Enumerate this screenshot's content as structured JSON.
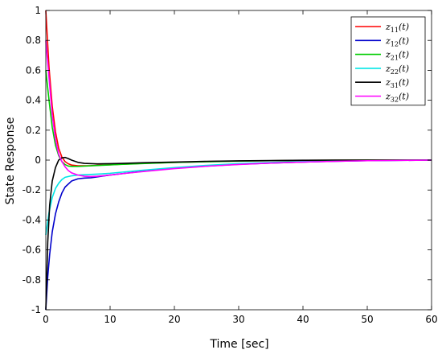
{
  "chart_data": {
    "type": "line",
    "xlabel": "Time [sec]",
    "ylabel": "State Response",
    "xlim": [
      0,
      60
    ],
    "ylim": [
      -1,
      1
    ],
    "xticks": [
      "0",
      "10",
      "20",
      "30",
      "40",
      "50",
      "60"
    ],
    "yticks": [
      "-1",
      "-0.8",
      "-0.6",
      "-0.4",
      "-0.2",
      "0",
      "0.2",
      "0.4",
      "0.6",
      "0.8",
      "1"
    ],
    "grid": false,
    "legend_position": "top-right",
    "series": [
      {
        "name": "z11(t)",
        "label_main": "z",
        "label_sub": "11",
        "label_tail": "(t)",
        "color": "#ff0000",
        "x": [
          0,
          0.5,
          1,
          1.5,
          2,
          2.5,
          3,
          3.5,
          4,
          5,
          6,
          7,
          8,
          10,
          12,
          15,
          20,
          25,
          30,
          35,
          40,
          45,
          50,
          55,
          60
        ],
        "y": [
          1.0,
          0.62,
          0.36,
          0.19,
          0.08,
          0.02,
          -0.01,
          -0.025,
          -0.033,
          -0.038,
          -0.038,
          -0.037,
          -0.035,
          -0.031,
          -0.027,
          -0.022,
          -0.015,
          -0.01,
          -0.006,
          -0.004,
          -0.002,
          -0.001,
          0,
          0,
          0
        ]
      },
      {
        "name": "z12(t)",
        "label_main": "z",
        "label_sub": "12",
        "label_tail": "(t)",
        "color": "#0000cc",
        "x": [
          0,
          0.3,
          0.6,
          1,
          1.5,
          2,
          2.5,
          3,
          4,
          5,
          6,
          7,
          8,
          10,
          12,
          15,
          20,
          25,
          30,
          35,
          40,
          45,
          50,
          55,
          60
        ],
        "y": [
          -1.0,
          -0.78,
          -0.63,
          -0.48,
          -0.36,
          -0.28,
          -0.22,
          -0.18,
          -0.14,
          -0.125,
          -0.12,
          -0.118,
          -0.112,
          -0.1,
          -0.09,
          -0.075,
          -0.055,
          -0.04,
          -0.028,
          -0.02,
          -0.013,
          -0.008,
          -0.004,
          -0.002,
          0
        ]
      },
      {
        "name": "z21(t)",
        "label_main": "z",
        "label_sub": "21",
        "label_tail": "(t)",
        "color": "#00cc00",
        "x": [
          0,
          0.5,
          1,
          1.5,
          2,
          2.5,
          3,
          3.5,
          4,
          5,
          6,
          7,
          8,
          10,
          12,
          15,
          20,
          25,
          30,
          35,
          40,
          45,
          50,
          55,
          60
        ],
        "y": [
          0.6,
          0.4,
          0.22,
          0.1,
          0.03,
          -0.01,
          -0.03,
          -0.04,
          -0.042,
          -0.042,
          -0.04,
          -0.038,
          -0.036,
          -0.032,
          -0.028,
          -0.023,
          -0.016,
          -0.011,
          -0.007,
          -0.004,
          -0.002,
          -0.001,
          0,
          0,
          0
        ]
      },
      {
        "name": "z22(t)",
        "label_main": "z",
        "label_sub": "22",
        "label_tail": "(t)",
        "color": "#00e5e5",
        "x": [
          0,
          0.5,
          1,
          1.5,
          2,
          2.5,
          3,
          4,
          5,
          6,
          7,
          8,
          10,
          12,
          15,
          20,
          25,
          30,
          35,
          40,
          45,
          50,
          55,
          60
        ],
        "y": [
          -0.5,
          -0.35,
          -0.25,
          -0.19,
          -0.155,
          -0.13,
          -0.115,
          -0.105,
          -0.1,
          -0.098,
          -0.096,
          -0.094,
          -0.088,
          -0.08,
          -0.068,
          -0.05,
          -0.035,
          -0.024,
          -0.016,
          -0.01,
          -0.006,
          -0.003,
          -0.001,
          0
        ]
      },
      {
        "name": "z31(t)",
        "label_main": "z",
        "label_sub": "31",
        "label_tail": "(t)",
        "color": "#000000",
        "x": [
          0,
          0.3,
          0.6,
          1,
          1.5,
          2,
          2.5,
          3,
          3.5,
          4,
          5,
          6,
          8,
          10,
          12,
          15,
          20,
          25,
          30,
          35,
          40,
          45,
          50,
          55,
          60
        ],
        "y": [
          -1.0,
          -0.55,
          -0.3,
          -0.14,
          -0.05,
          0.0,
          0.015,
          0.018,
          0.01,
          0.0,
          -0.015,
          -0.022,
          -0.025,
          -0.024,
          -0.022,
          -0.018,
          -0.013,
          -0.008,
          -0.005,
          -0.003,
          -0.001,
          0,
          0,
          0,
          0
        ]
      },
      {
        "name": "z32(t)",
        "label_main": "z",
        "label_sub": "32",
        "label_tail": "(t)",
        "color": "#ff00ff",
        "x": [
          0,
          0.5,
          1,
          1.5,
          2,
          2.5,
          3,
          3.5,
          4,
          5,
          6,
          7,
          8,
          10,
          12,
          15,
          20,
          25,
          30,
          35,
          40,
          45,
          50,
          55,
          60
        ],
        "y": [
          0.8,
          0.55,
          0.3,
          0.14,
          0.04,
          -0.01,
          -0.045,
          -0.07,
          -0.085,
          -0.1,
          -0.108,
          -0.11,
          -0.108,
          -0.1,
          -0.09,
          -0.077,
          -0.057,
          -0.041,
          -0.029,
          -0.02,
          -0.013,
          -0.008,
          -0.004,
          -0.002,
          0
        ]
      }
    ]
  }
}
